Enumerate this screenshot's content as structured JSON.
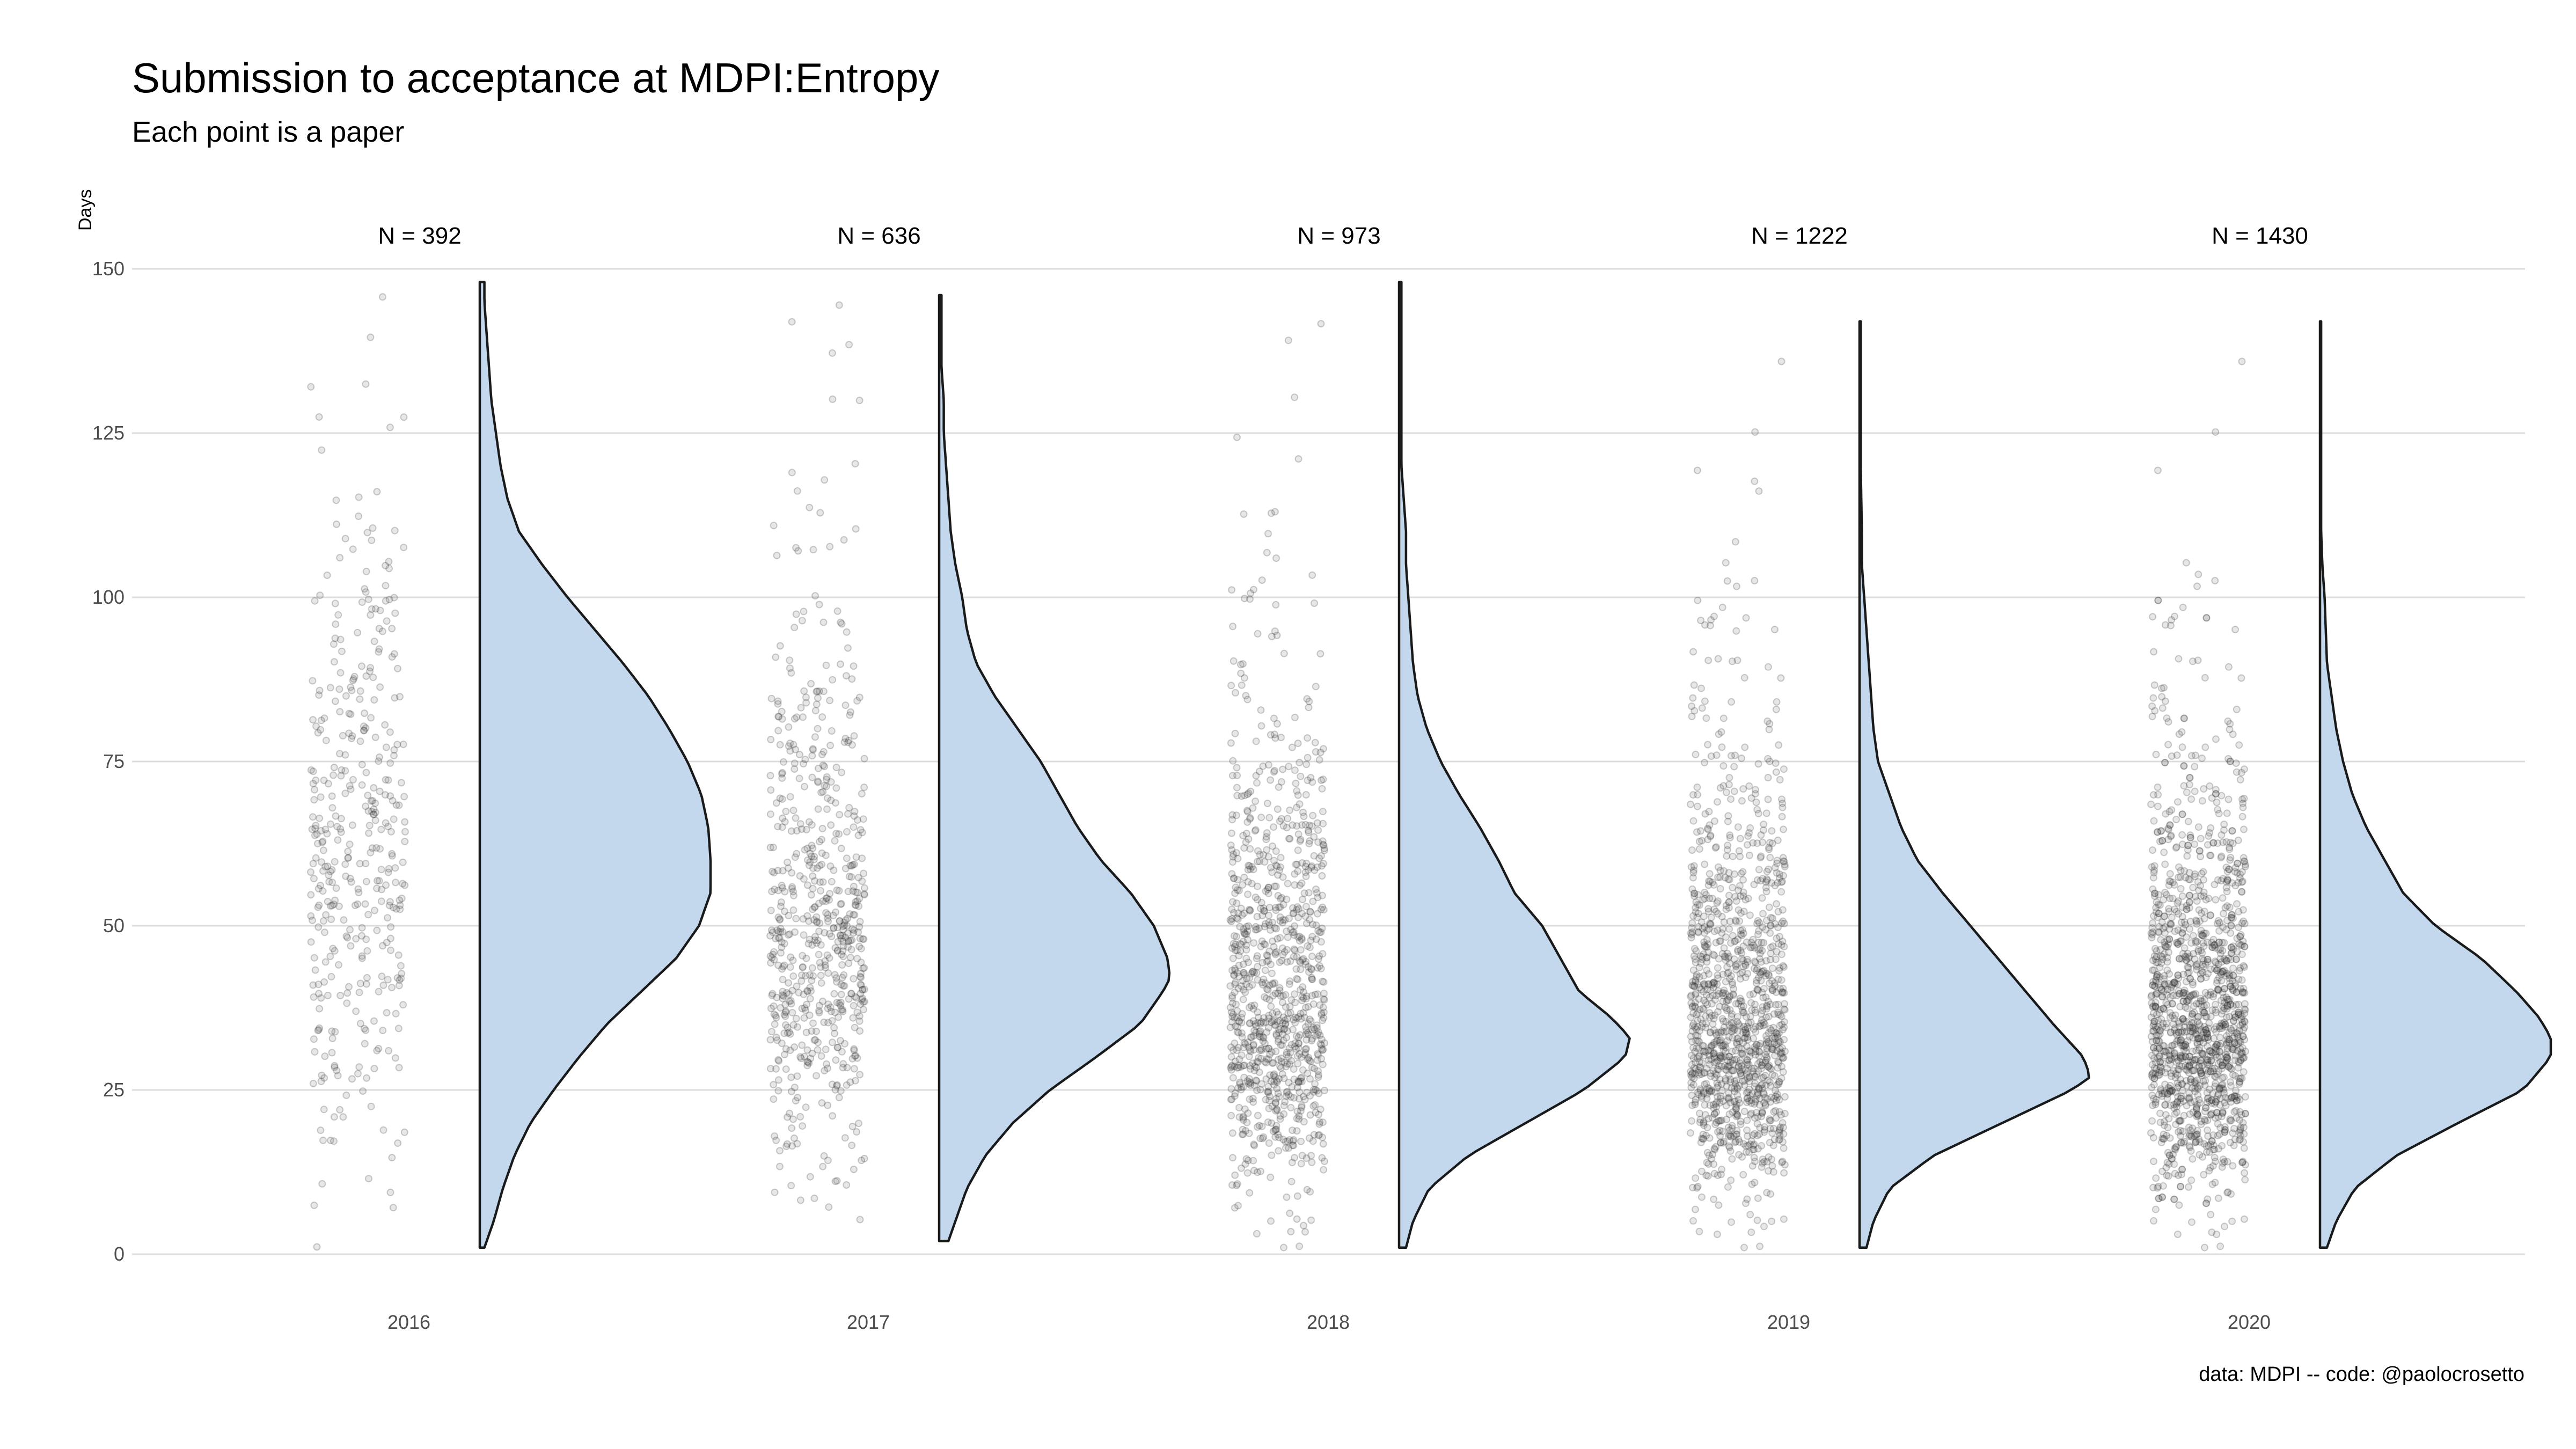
{
  "chart_data": {
    "type": "raincloud",
    "title": "Submission to acceptance at MDPI:Entropy",
    "subtitle": "Each point is a paper",
    "ylabel": "Days",
    "xlabel": "",
    "caption": "data: MDPI -- code: @paolocrosetto",
    "ylim": [
      0,
      150
    ],
    "yticks": [
      0,
      25,
      50,
      75,
      100,
      125,
      150
    ],
    "grid": true,
    "categories": [
      "2016",
      "2017",
      "2018",
      "2019",
      "2020"
    ],
    "groups": [
      {
        "year": "2016",
        "n": 392,
        "n_label": "N = 392",
        "min": 1,
        "max": 148,
        "density": [
          [
            1,
            0.02
          ],
          [
            5,
            0.06
          ],
          [
            10,
            0.1
          ],
          [
            15,
            0.15
          ],
          [
            20,
            0.22
          ],
          [
            25,
            0.32
          ],
          [
            30,
            0.43
          ],
          [
            35,
            0.55
          ],
          [
            40,
            0.7
          ],
          [
            45,
            0.85
          ],
          [
            50,
            0.95
          ],
          [
            55,
            1.0
          ],
          [
            60,
            1.0
          ],
          [
            65,
            0.99
          ],
          [
            70,
            0.96
          ],
          [
            75,
            0.9
          ],
          [
            80,
            0.82
          ],
          [
            85,
            0.73
          ],
          [
            90,
            0.62
          ],
          [
            95,
            0.5
          ],
          [
            100,
            0.38
          ],
          [
            105,
            0.27
          ],
          [
            110,
            0.17
          ],
          [
            115,
            0.12
          ],
          [
            120,
            0.09
          ],
          [
            125,
            0.07
          ],
          [
            130,
            0.05
          ],
          [
            135,
            0.04
          ],
          [
            140,
            0.03
          ],
          [
            145,
            0.02
          ],
          [
            148,
            0.02
          ]
        ]
      },
      {
        "year": "2017",
        "n": 636,
        "n_label": "N = 636",
        "min": 2,
        "max": 146,
        "density": [
          [
            2,
            0.04
          ],
          [
            5,
            0.07
          ],
          [
            10,
            0.12
          ],
          [
            15,
            0.2
          ],
          [
            20,
            0.32
          ],
          [
            25,
            0.48
          ],
          [
            30,
            0.68
          ],
          [
            35,
            0.87
          ],
          [
            40,
            0.97
          ],
          [
            42,
            1.0
          ],
          [
            45,
            0.99
          ],
          [
            50,
            0.93
          ],
          [
            55,
            0.83
          ],
          [
            60,
            0.7
          ],
          [
            65,
            0.6
          ],
          [
            70,
            0.52
          ],
          [
            75,
            0.44
          ],
          [
            80,
            0.34
          ],
          [
            85,
            0.24
          ],
          [
            90,
            0.16
          ],
          [
            95,
            0.12
          ],
          [
            100,
            0.1
          ],
          [
            105,
            0.07
          ],
          [
            110,
            0.05
          ],
          [
            115,
            0.04
          ],
          [
            120,
            0.03
          ],
          [
            125,
            0.02
          ],
          [
            130,
            0.02
          ],
          [
            135,
            0.01
          ],
          [
            140,
            0.01
          ],
          [
            146,
            0.01
          ]
        ]
      },
      {
        "year": "2018",
        "n": 973,
        "n_label": "N = 973",
        "min": 1,
        "max": 148,
        "density": [
          [
            1,
            0.03
          ],
          [
            5,
            0.06
          ],
          [
            10,
            0.13
          ],
          [
            15,
            0.3
          ],
          [
            20,
            0.55
          ],
          [
            25,
            0.8
          ],
          [
            30,
            0.98
          ],
          [
            33,
            1.0
          ],
          [
            36,
            0.92
          ],
          [
            40,
            0.78
          ],
          [
            45,
            0.7
          ],
          [
            50,
            0.62
          ],
          [
            55,
            0.5
          ],
          [
            60,
            0.43
          ],
          [
            65,
            0.35
          ],
          [
            70,
            0.26
          ],
          [
            75,
            0.18
          ],
          [
            80,
            0.12
          ],
          [
            85,
            0.08
          ],
          [
            90,
            0.06
          ],
          [
            95,
            0.05
          ],
          [
            100,
            0.04
          ],
          [
            105,
            0.03
          ],
          [
            110,
            0.03
          ],
          [
            115,
            0.02
          ],
          [
            120,
            0.01
          ],
          [
            130,
            0.01
          ],
          [
            140,
            0.01
          ],
          [
            148,
            0.01
          ]
        ]
      },
      {
        "year": "2019",
        "n": 1222,
        "n_label": "N = 1222",
        "min": 1,
        "max": 142,
        "density": [
          [
            1,
            0.03
          ],
          [
            5,
            0.06
          ],
          [
            10,
            0.13
          ],
          [
            15,
            0.32
          ],
          [
            20,
            0.62
          ],
          [
            25,
            0.92
          ],
          [
            27,
            1.0
          ],
          [
            30,
            0.97
          ],
          [
            35,
            0.84
          ],
          [
            40,
            0.72
          ],
          [
            45,
            0.6
          ],
          [
            50,
            0.48
          ],
          [
            55,
            0.36
          ],
          [
            60,
            0.25
          ],
          [
            65,
            0.18
          ],
          [
            70,
            0.13
          ],
          [
            75,
            0.08
          ],
          [
            80,
            0.06
          ],
          [
            85,
            0.05
          ],
          [
            90,
            0.04
          ],
          [
            95,
            0.03
          ],
          [
            100,
            0.02
          ],
          [
            105,
            0.01
          ],
          [
            110,
            0.01
          ],
          [
            120,
            0.005
          ],
          [
            130,
            0.005
          ],
          [
            142,
            0.005
          ]
        ]
      },
      {
        "year": "2020",
        "n": 1430,
        "n_label": "N = 1430",
        "min": 1,
        "max": 142,
        "density": [
          [
            1,
            0.03
          ],
          [
            5,
            0.07
          ],
          [
            10,
            0.15
          ],
          [
            15,
            0.33
          ],
          [
            20,
            0.6
          ],
          [
            25,
            0.88
          ],
          [
            30,
            1.0
          ],
          [
            33,
            1.0
          ],
          [
            36,
            0.95
          ],
          [
            40,
            0.85
          ],
          [
            45,
            0.7
          ],
          [
            50,
            0.5
          ],
          [
            55,
            0.36
          ],
          [
            60,
            0.28
          ],
          [
            65,
            0.2
          ],
          [
            70,
            0.14
          ],
          [
            75,
            0.1
          ],
          [
            80,
            0.07
          ],
          [
            85,
            0.05
          ],
          [
            90,
            0.03
          ],
          [
            95,
            0.025
          ],
          [
            100,
            0.02
          ],
          [
            105,
            0.01
          ],
          [
            110,
            0.005
          ],
          [
            120,
            0.005
          ],
          [
            130,
            0.005
          ],
          [
            142,
            0.005
          ]
        ]
      }
    ]
  }
}
